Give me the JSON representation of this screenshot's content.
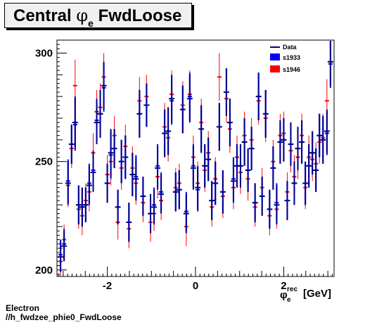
{
  "title": {
    "prefix": "Central",
    "symbol": "φ",
    "subscript": "e",
    "suffix": "FwdLoose"
  },
  "footer": {
    "line1": "Electron",
    "line2": "//h_fwdzee_phie0_FwdLoose"
  },
  "colors": {
    "data": "#00008b",
    "s1933": "#0000ff",
    "s1946": "#ff0000",
    "frame": "#000000"
  },
  "chart_data": {
    "type": "scatter",
    "title": "Central φe FwdLoose",
    "xlabel": "φe^rec [GeV]",
    "xlabel_main": "φ",
    "xlabel_sub": "e",
    "xlabel_sup": "rec",
    "xlabel_unit": "[GeV]",
    "ylabel": "",
    "xlim": [
      -3.1416,
      3.1416
    ],
    "ylim": [
      197,
      306
    ],
    "x_ticks": [
      -2,
      0,
      2
    ],
    "x_tick_labels": [
      "-2",
      "0",
      "2"
    ],
    "y_ticks": [
      200,
      250,
      300
    ],
    "y_tick_labels": [
      "200",
      "250",
      "300"
    ],
    "legend": {
      "placement": "top-right",
      "entries": [
        "Data",
        "s1933",
        "s1946"
      ]
    },
    "series": [
      {
        "name": "Data",
        "marker": "errorbar",
        "x": [
          -3.06,
          -2.98,
          -2.89,
          -2.81,
          -2.73,
          -2.65,
          -2.57,
          -2.49,
          -2.41,
          -2.32,
          -2.24,
          -2.16,
          -2.08,
          -2.0,
          -1.92,
          -1.84,
          -1.76,
          -1.68,
          -1.59,
          -1.51,
          -1.43,
          -1.35,
          -1.27,
          -1.19,
          -1.11,
          -1.02,
          -0.94,
          -0.86,
          -0.78,
          -0.7,
          -0.62,
          -0.54,
          -0.45,
          -0.37,
          -0.29,
          -0.21,
          -0.13,
          -0.05,
          0.05,
          0.13,
          0.21,
          0.29,
          0.37,
          0.45,
          0.54,
          0.62,
          0.7,
          0.78,
          0.86,
          0.94,
          1.02,
          1.11,
          1.19,
          1.27,
          1.35,
          1.43,
          1.51,
          1.59,
          1.68,
          1.76,
          1.84,
          1.92,
          2.0,
          2.08,
          2.16,
          2.24,
          2.32,
          2.41,
          2.49,
          2.57,
          2.65,
          2.73,
          2.81,
          2.89,
          2.98,
          3.06
        ],
        "y": [
          206,
          211,
          240,
          258,
          268,
          230,
          229,
          230,
          239,
          245,
          268,
          272,
          285,
          240,
          254,
          256,
          229,
          250,
          252,
          222,
          244,
          242,
          272,
          234,
          276,
          226,
          229,
          247,
          235,
          263,
          264,
          279,
          236,
          237,
          274,
          226,
          279,
          247,
          238,
          265,
          248,
          251,
          232,
          240,
          266,
          236,
          282,
          268,
          241,
          248,
          248,
          259,
          246,
          256,
          231,
          280,
          234,
          272,
          228,
          247,
          230,
          259,
          260,
          232,
          258,
          240,
          256,
          259,
          240,
          248,
          254,
          246,
          262,
          260,
          264,
          296
        ],
        "err": [
          7,
          7,
          10,
          9,
          12,
          9,
          9,
          8,
          9,
          9,
          10,
          11,
          11,
          9,
          11,
          9,
          8,
          10,
          10,
          9,
          10,
          10,
          11,
          9,
          10,
          9,
          8,
          10,
          9,
          11,
          11,
          11,
          9,
          9,
          11,
          9,
          11,
          10,
          10,
          11,
          10,
          10,
          9,
          10,
          11,
          10,
          11,
          11,
          10,
          10,
          10,
          11,
          10,
          10,
          9,
          11,
          9,
          11,
          9,
          10,
          9,
          10,
          10,
          9,
          10,
          10,
          10,
          10,
          10,
          10,
          10,
          10,
          10,
          11,
          10,
          11
        ]
      },
      {
        "name": "s1933",
        "marker": "errorbar",
        "x": [
          -3.06,
          -2.98,
          -2.89,
          -2.81,
          -2.73,
          -2.65,
          -2.57,
          -2.49,
          -2.41,
          -2.32,
          -2.24,
          -2.16,
          -2.08,
          -2.0,
          -1.92,
          -1.84,
          -1.76,
          -1.68,
          -1.59,
          -1.51,
          -1.43,
          -1.35,
          -1.27,
          -1.19,
          -1.11,
          -1.02,
          -0.94,
          -0.86,
          -0.78,
          -0.7,
          -0.62,
          -0.54,
          -0.45,
          -0.37,
          -0.29,
          -0.21,
          -0.13,
          -0.05,
          0.05,
          0.13,
          0.21,
          0.29,
          0.37,
          0.45,
          0.54,
          0.62,
          0.7,
          0.78,
          0.86,
          0.94,
          1.02,
          1.11,
          1.19,
          1.27,
          1.35,
          1.43,
          1.51,
          1.59,
          1.68,
          1.76,
          1.84,
          1.92,
          2.0,
          2.08,
          2.16,
          2.24,
          2.32,
          2.41,
          2.49,
          2.57,
          2.65,
          2.73,
          2.81,
          2.89,
          2.98,
          3.06
        ],
        "y": [
          207,
          212,
          241,
          258,
          267,
          230,
          229,
          230,
          240,
          246,
          269,
          272,
          284,
          240,
          253,
          256,
          229,
          250,
          252,
          222,
          244,
          243,
          272,
          234,
          276,
          226,
          230,
          248,
          236,
          263,
          264,
          278,
          236,
          237,
          274,
          227,
          280,
          248,
          237,
          265,
          248,
          251,
          232,
          240,
          266,
          236,
          282,
          268,
          242,
          248,
          248,
          259,
          246,
          256,
          231,
          280,
          234,
          272,
          228,
          247,
          231,
          259,
          260,
          232,
          258,
          240,
          256,
          259,
          240,
          248,
          254,
          246,
          262,
          260,
          263,
          295
        ],
        "err": [
          7,
          7,
          10,
          9,
          12,
          9,
          9,
          8,
          9,
          9,
          10,
          11,
          11,
          9,
          11,
          9,
          8,
          10,
          10,
          9,
          10,
          10,
          11,
          9,
          10,
          9,
          8,
          10,
          9,
          11,
          11,
          11,
          9,
          9,
          11,
          9,
          11,
          10,
          10,
          11,
          10,
          10,
          9,
          10,
          11,
          10,
          11,
          11,
          10,
          10,
          10,
          11,
          10,
          10,
          9,
          11,
          9,
          11,
          9,
          10,
          9,
          10,
          10,
          9,
          10,
          10,
          10,
          10,
          10,
          10,
          10,
          10,
          10,
          11,
          10,
          11
        ]
      },
      {
        "name": "s1946",
        "marker": "errorbar",
        "x": [
          -3.06,
          -2.98,
          -2.89,
          -2.81,
          -2.73,
          -2.65,
          -2.57,
          -2.49,
          -2.41,
          -2.32,
          -2.24,
          -2.16,
          -2.08,
          -2.0,
          -1.92,
          -1.84,
          -1.76,
          -1.68,
          -1.59,
          -1.51,
          -1.43,
          -1.35,
          -1.27,
          -1.19,
          -1.11,
          -1.02,
          -0.94,
          -0.86,
          -0.78,
          -0.7,
          -0.62,
          -0.54,
          -0.45,
          -0.37,
          -0.29,
          -0.21,
          -0.13,
          -0.05,
          0.05,
          0.13,
          0.21,
          0.29,
          0.37,
          0.45,
          0.54,
          0.62,
          0.7,
          0.78,
          0.86,
          0.94,
          1.02,
          1.11,
          1.19,
          1.27,
          1.35,
          1.43,
          1.51,
          1.59,
          1.68,
          1.76,
          1.84,
          1.92,
          2.0,
          2.08,
          2.16,
          2.24,
          2.32,
          2.41,
          2.49,
          2.57,
          2.65,
          2.73,
          2.81,
          2.89,
          2.98,
          3.06
        ],
        "y": [
          204,
          214,
          239,
          256,
          285,
          228,
          225,
          232,
          236,
          254,
          273,
          275,
          289,
          244,
          250,
          262,
          222,
          247,
          257,
          219,
          247,
          240,
          278,
          231,
          280,
          222,
          226,
          243,
          232,
          266,
          261,
          281,
          238,
          240,
          276,
          220,
          281,
          252,
          240,
          268,
          246,
          254,
          229,
          242,
          289,
          234,
          279,
          265,
          238,
          252,
          245,
          262,
          242,
          260,
          229,
          278,
          238,
          270,
          225,
          250,
          228,
          262,
          263,
          236,
          255,
          243,
          252,
          262,
          238,
          252,
          251,
          249,
          259,
          261,
          278,
          296
        ],
        "err": [
          7,
          7,
          10,
          9,
          12,
          9,
          9,
          8,
          9,
          9,
          10,
          11,
          11,
          9,
          11,
          9,
          8,
          10,
          10,
          9,
          10,
          10,
          11,
          9,
          10,
          9,
          8,
          10,
          9,
          11,
          11,
          11,
          9,
          9,
          11,
          9,
          11,
          10,
          10,
          11,
          10,
          10,
          9,
          10,
          11,
          10,
          11,
          11,
          10,
          10,
          10,
          11,
          10,
          10,
          9,
          11,
          9,
          11,
          9,
          10,
          9,
          10,
          10,
          9,
          10,
          10,
          10,
          10,
          10,
          10,
          10,
          10,
          10,
          11,
          10,
          11
        ]
      }
    ]
  }
}
